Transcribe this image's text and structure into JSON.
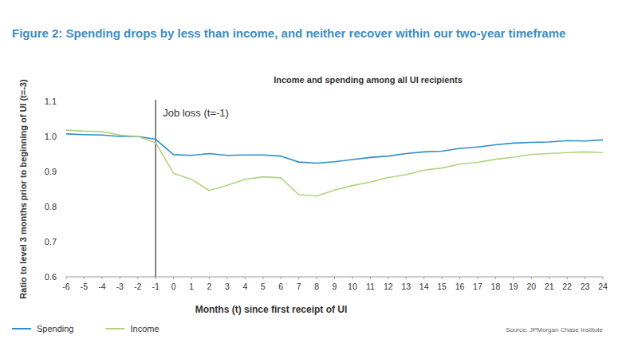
{
  "chart_data": {
    "type": "line",
    "title": "Figure 2: Spending drops by less than income, and neither recover within our two-year timeframe",
    "subtitle": "Income and spending among all UI recipients",
    "x_label": "Months (t) since first receipt of UI",
    "y_label": "Ratio to level 3 months prior to beginning of UI (t=-3)",
    "annotations": [
      {
        "text": "Job loss (t=-1)",
        "x": -1
      }
    ],
    "source": "Source: JPMorgan Chase Institute",
    "x": [
      -6,
      -5,
      -4,
      -3,
      -2,
      -1,
      0,
      1,
      2,
      3,
      4,
      5,
      6,
      7,
      8,
      9,
      10,
      11,
      12,
      13,
      14,
      15,
      16,
      17,
      18,
      19,
      20,
      21,
      22,
      23,
      24
    ],
    "series": [
      {
        "name": "Spending",
        "color": "#2f8fc9",
        "values": [
          1.007,
          1.005,
          1.004,
          1.0,
          1.0,
          0.992,
          0.948,
          0.946,
          0.951,
          0.946,
          0.947,
          0.947,
          0.944,
          0.927,
          0.924,
          0.928,
          0.934,
          0.94,
          0.944,
          0.951,
          0.956,
          0.958,
          0.966,
          0.97,
          0.976,
          0.981,
          0.983,
          0.984,
          0.988,
          0.987,
          0.99
        ]
      },
      {
        "name": "Income",
        "color": "#b0d47c",
        "values": [
          1.018,
          1.015,
          1.014,
          1.004,
          1.0,
          0.982,
          0.895,
          0.878,
          0.846,
          0.861,
          0.878,
          0.885,
          0.882,
          0.834,
          0.83,
          0.847,
          0.86,
          0.87,
          0.883,
          0.891,
          0.904,
          0.91,
          0.921,
          0.926,
          0.935,
          0.941,
          0.949,
          0.951,
          0.954,
          0.956,
          0.954
        ]
      }
    ],
    "xlim": [
      -6,
      24
    ],
    "xticks": [
      -6,
      -5,
      -4,
      -3,
      -2,
      -1,
      0,
      1,
      2,
      3,
      4,
      5,
      6,
      7,
      8,
      9,
      10,
      11,
      12,
      13,
      14,
      15,
      16,
      17,
      18,
      19,
      20,
      21,
      22,
      23,
      24
    ],
    "ylim": [
      0.6,
      1.1
    ],
    "yticks": [
      0.6,
      0.7,
      0.8,
      0.9,
      {
        "value": 1,
        "label": "1.0"
      },
      1.1
    ],
    "grid": false,
    "legend": "bottom-left"
  }
}
